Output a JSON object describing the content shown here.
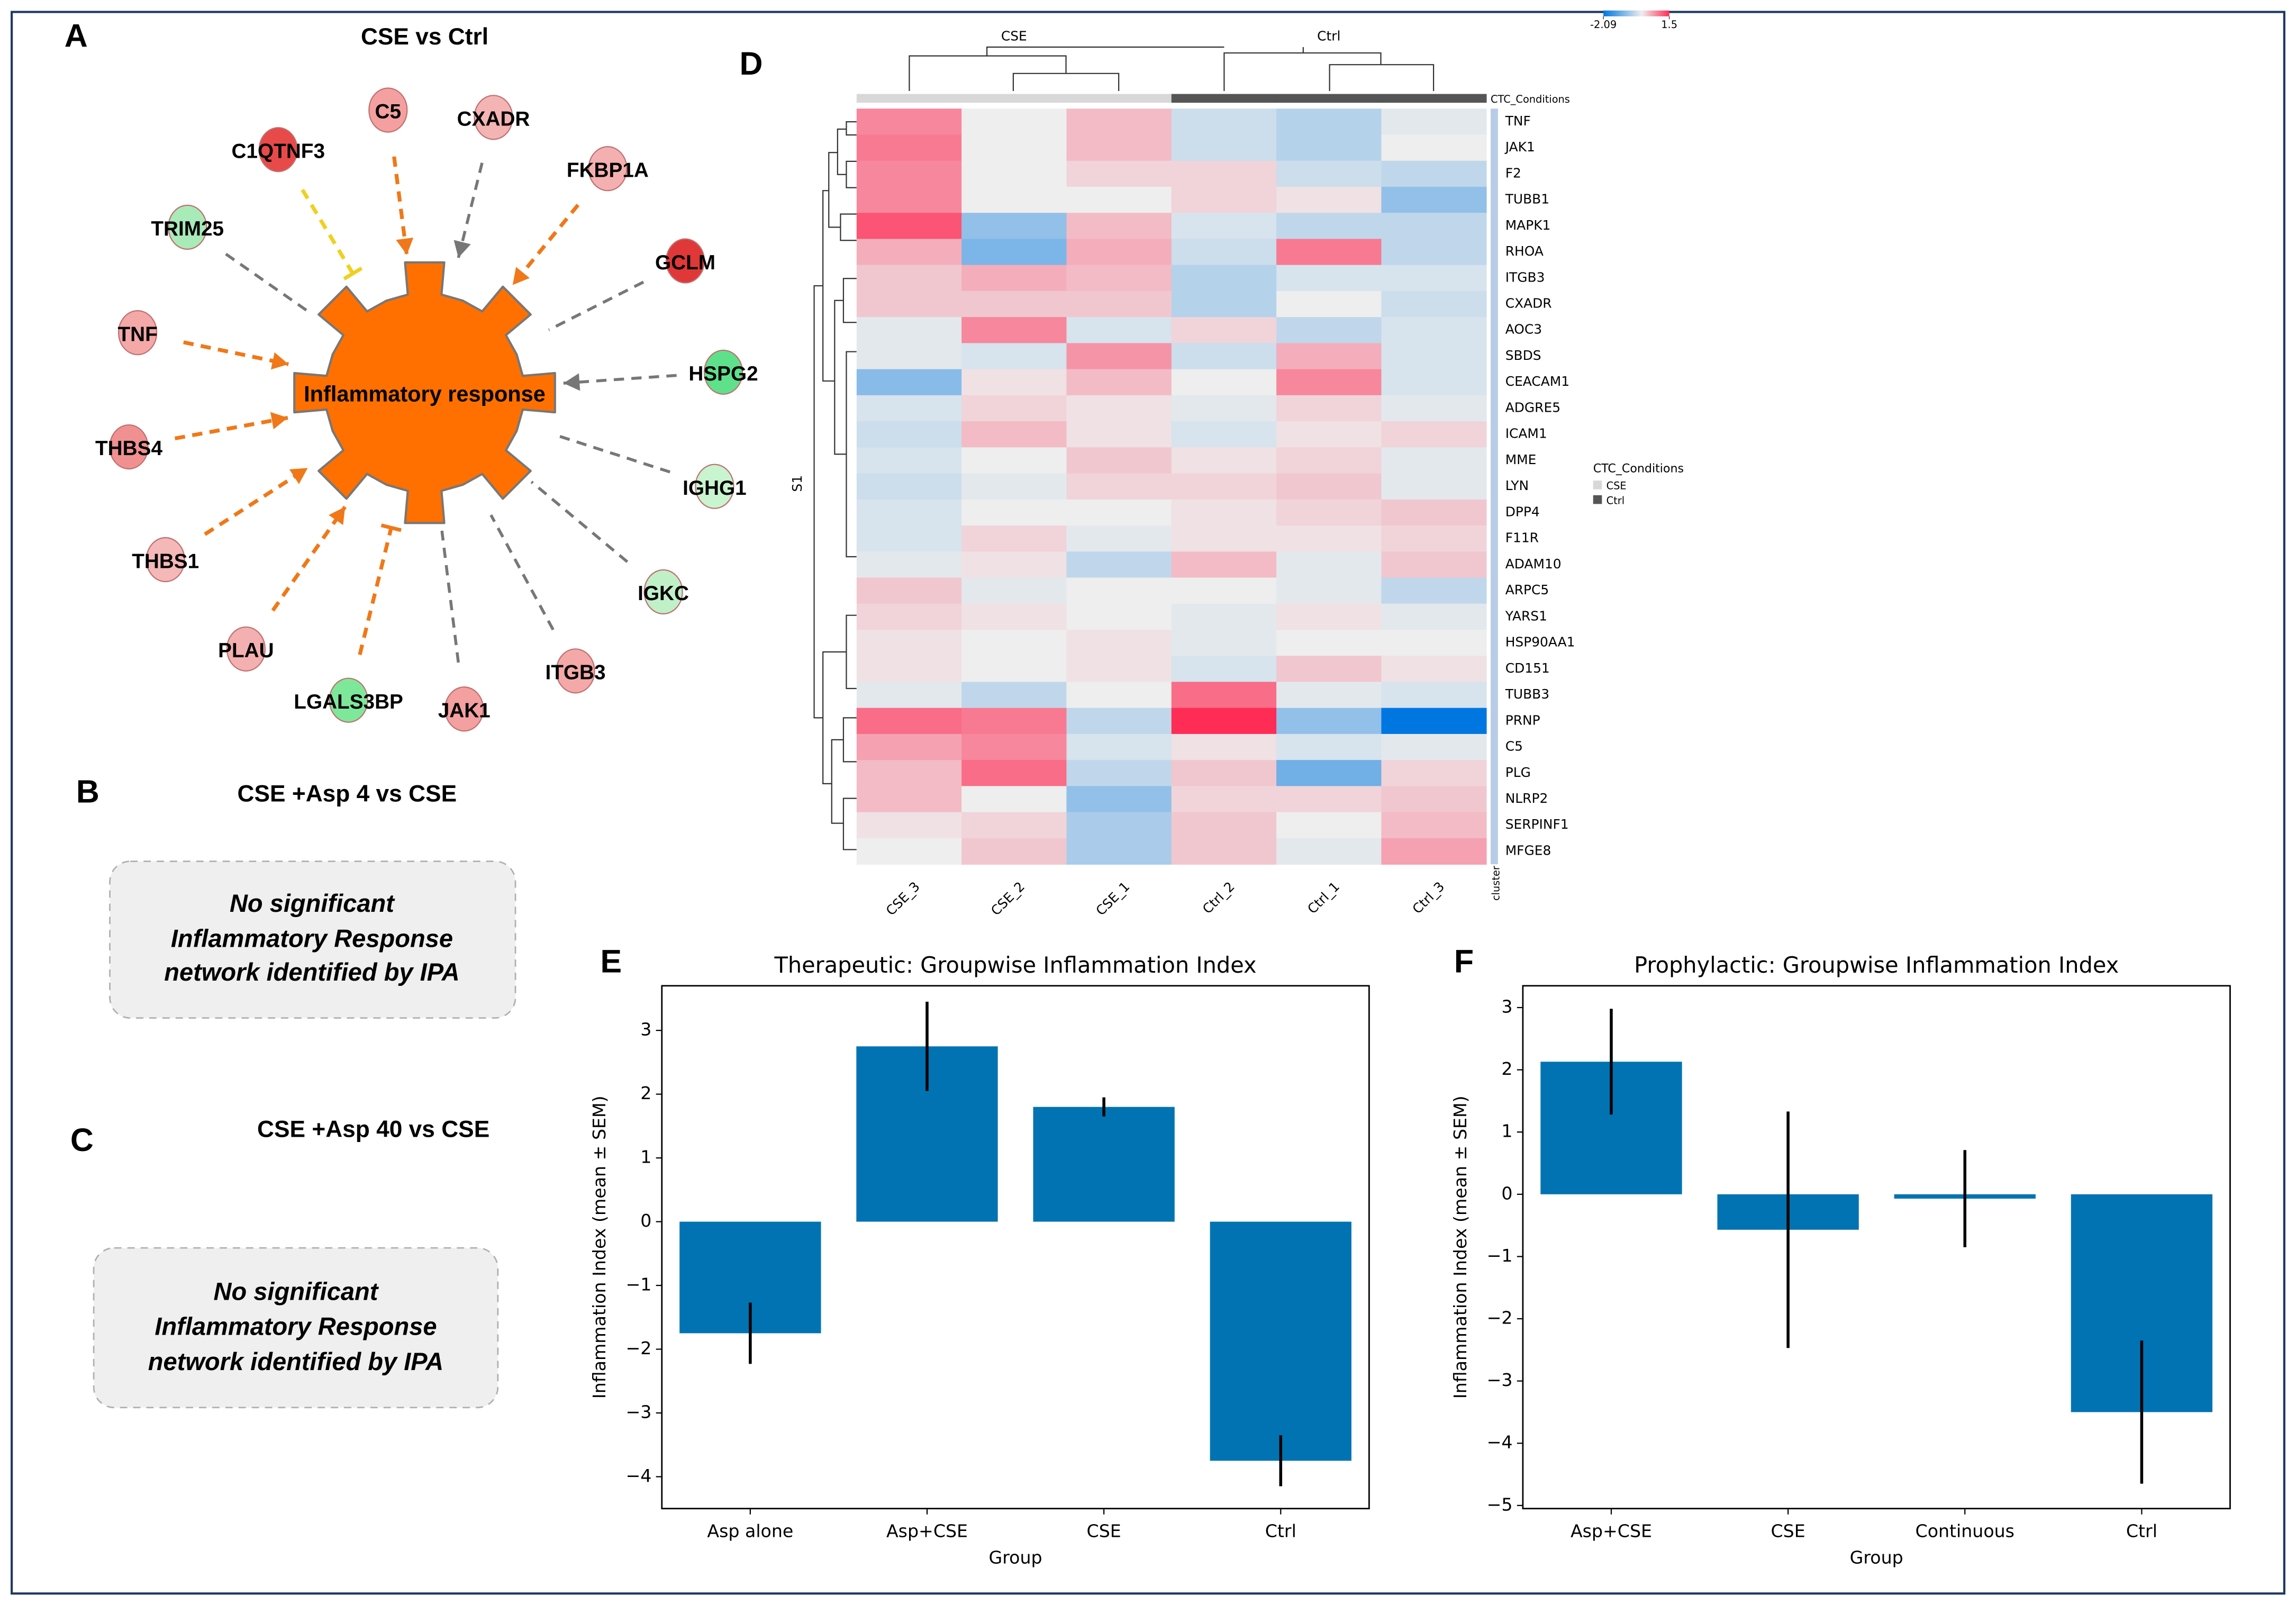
{
  "panel_labels": [
    "A",
    "B",
    "C",
    "D",
    "E",
    "F"
  ],
  "network": {
    "title": "CSE vs Ctrl",
    "center": "Inflammatory response",
    "center_color": "#ff7000",
    "nodes": [
      {
        "label": "C1QTNF3",
        "color": "#e84a4a",
        "edge_color": "#f0d020",
        "edge_end": "bar"
      },
      {
        "label": "C5",
        "color": "#f4a0a0",
        "edge_color": "#f07818",
        "edge_end": "arrow"
      },
      {
        "label": "CXADR",
        "color": "#f4b4b4",
        "edge_color": "#777777",
        "edge_end": "arrow"
      },
      {
        "label": "FKBP1A",
        "color": "#f4b0b0",
        "edge_color": "#f07818",
        "edge_end": "arrow"
      },
      {
        "label": "TRIM25",
        "color": "#a8eab8",
        "edge_color": "#777777",
        "edge_end": "none"
      },
      {
        "label": "GCLM",
        "color": "#e03838",
        "edge_color": "#777777",
        "edge_end": "none"
      },
      {
        "label": "TNF",
        "color": "#f4a8a8",
        "edge_color": "#f07818",
        "edge_end": "arrow"
      },
      {
        "label": "HSPG2",
        "color": "#5fe08a",
        "edge_color": "#777777",
        "edge_end": "arrow"
      },
      {
        "label": "THBS4",
        "color": "#f09090",
        "edge_color": "#f07818",
        "edge_end": "arrow"
      },
      {
        "label": "IGHG1",
        "color": "#c8f4d0",
        "edge_color": "#777777",
        "edge_end": "none"
      },
      {
        "label": "THBS1",
        "color": "#f4b8b8",
        "edge_color": "#f07818",
        "edge_end": "arrow"
      },
      {
        "label": "IGKC",
        "color": "#c0f0c8",
        "edge_color": "#777777",
        "edge_end": "none"
      },
      {
        "label": "PLAU",
        "color": "#f4b0b0",
        "edge_color": "#f07818",
        "edge_end": "arrow"
      },
      {
        "label": "ITGB3",
        "color": "#f4a8a8",
        "edge_color": "#777777",
        "edge_end": "none"
      },
      {
        "label": "LGALS3BP",
        "color": "#7ee89a",
        "edge_color": "#f07818",
        "edge_end": "bar"
      },
      {
        "label": "JAK1",
        "color": "#f4a0a0",
        "edge_color": "#777777",
        "edge_end": "none"
      }
    ]
  },
  "panel_b": {
    "title": "CSE +Asp 4 vs CSE",
    "note": [
      "No significant",
      "Inflammatory Response",
      "network identified by IPA"
    ]
  },
  "panel_c": {
    "title": "CSE +Asp 40 vs CSE",
    "note": [
      "No significant",
      "Inflammatory Response",
      "network identified by IPA"
    ]
  },
  "chart_data": [
    {
      "type": "heatmap",
      "groups": [
        "CSE",
        "Ctrl"
      ],
      "group_colors": [
        "#d8d8d8",
        "#555555"
      ],
      "legend_title": "CTC_Conditions",
      "row_axis_label": "S1",
      "cluster_label": "cluster",
      "columns": [
        "CSE_3",
        "CSE_2",
        "CSE_1",
        "Ctrl_2",
        "Ctrl_1",
        "Ctrl_3"
      ],
      "column_groups": [
        0,
        0,
        0,
        1,
        1,
        1
      ],
      "rows": [
        "TNF",
        "JAK1",
        "F2",
        "TUBB1",
        "MAPK1",
        "RHOA",
        "ITGB3",
        "CXADR",
        "AOC3",
        "SBDS",
        "CEACAM1",
        "ADGRE5",
        "ICAM1",
        "MME",
        "LYN",
        "DPP4",
        "F11R",
        "ADAM10",
        "ARPC5",
        "YARS1",
        "HSP90AA1",
        "CD151",
        "TUBB3",
        "PRNP",
        "C5",
        "PLG",
        "NLRP2",
        "SERPINF1",
        "MFGE8"
      ],
      "values": [
        [
          0.8,
          0.0,
          0.4,
          -0.3,
          -0.5,
          -0.1
        ],
        [
          0.9,
          0.0,
          0.4,
          -0.3,
          -0.5,
          0.0
        ],
        [
          0.8,
          0.0,
          0.2,
          0.2,
          -0.3,
          -0.4
        ],
        [
          0.8,
          0.0,
          0.0,
          0.2,
          0.1,
          -0.8
        ],
        [
          1.2,
          -0.8,
          0.4,
          -0.2,
          -0.4,
          -0.4
        ],
        [
          0.5,
          -1.0,
          0.5,
          -0.3,
          0.9,
          -0.4
        ],
        [
          0.3,
          0.5,
          0.4,
          -0.5,
          -0.2,
          -0.2
        ],
        [
          0.3,
          0.3,
          0.3,
          -0.5,
          0.0,
          -0.3
        ],
        [
          -0.1,
          0.8,
          -0.2,
          0.2,
          -0.4,
          -0.2
        ],
        [
          -0.1,
          -0.2,
          0.7,
          -0.3,
          0.5,
          -0.2
        ],
        [
          -0.9,
          0.1,
          0.4,
          0.0,
          0.8,
          -0.2
        ],
        [
          -0.2,
          0.2,
          0.1,
          -0.1,
          0.2,
          -0.1
        ],
        [
          -0.3,
          0.4,
          0.1,
          -0.2,
          0.1,
          0.2
        ],
        [
          -0.2,
          0.0,
          0.3,
          0.1,
          0.2,
          -0.1
        ],
        [
          -0.3,
          -0.1,
          0.2,
          0.2,
          0.3,
          -0.1
        ],
        [
          -0.2,
          0.0,
          0.0,
          0.1,
          0.2,
          0.3
        ],
        [
          -0.2,
          0.2,
          -0.1,
          0.1,
          0.1,
          0.2
        ],
        [
          -0.1,
          0.1,
          -0.4,
          0.4,
          -0.1,
          0.3
        ],
        [
          0.3,
          -0.1,
          0.0,
          0.0,
          -0.1,
          -0.4
        ],
        [
          0.2,
          0.1,
          0.0,
          -0.1,
          0.1,
          -0.1
        ],
        [
          0.1,
          0.0,
          0.1,
          -0.1,
          0.0,
          0.0
        ],
        [
          0.1,
          0.0,
          0.1,
          -0.2,
          0.3,
          0.1
        ],
        [
          -0.1,
          -0.4,
          0.0,
          1.0,
          -0.1,
          -0.2
        ],
        [
          1.0,
          0.9,
          -0.4,
          1.5,
          -0.8,
          -2.09
        ],
        [
          0.6,
          0.8,
          -0.2,
          0.1,
          -0.2,
          -0.1
        ],
        [
          0.4,
          1.0,
          -0.4,
          0.3,
          -1.1,
          0.2
        ],
        [
          0.4,
          0.0,
          -0.8,
          0.2,
          0.2,
          0.3
        ],
        [
          0.1,
          0.2,
          -0.6,
          0.3,
          0.0,
          0.4
        ],
        [
          0.0,
          0.3,
          -0.6,
          0.3,
          -0.1,
          0.6
        ]
      ],
      "zlim": [
        -2.09,
        1.5
      ],
      "zticks": [
        -2.09,
        1.5
      ],
      "colors": [
        "#0077e0",
        "#eeeeee",
        "#ff2d55"
      ],
      "cluster_color": "#b8cce8"
    },
    {
      "type": "bar",
      "title": "Therapeutic: Groupwise Inflammation Index",
      "xlabel": "Group",
      "ylabel": "Inflammation Index (mean ± SEM)",
      "categories": [
        "Asp alone",
        "Asp+CSE",
        "CSE",
        "Ctrl"
      ],
      "values": [
        -1.75,
        2.75,
        1.8,
        -3.75
      ],
      "errors": [
        0.48,
        0.7,
        0.15,
        0.4
      ],
      "color": "#0173b2",
      "error_color": "#000000",
      "ylim": [
        -4.5,
        3.7
      ],
      "yticks": [
        {
          "value": -4,
          "label": "−4"
        },
        {
          "value": -3,
          "label": "−3"
        },
        {
          "value": -2,
          "label": "−2"
        },
        {
          "value": -1,
          "label": "−1"
        },
        0,
        1,
        2,
        3
      ]
    },
    {
      "type": "bar",
      "title": "Prophylactic: Groupwise Inflammation Index",
      "xlabel": "Group",
      "ylabel": "Inflammation Index (mean ± SEM)",
      "categories": [
        "Asp+CSE",
        "CSE",
        "Continuous",
        "Ctrl"
      ],
      "values": [
        2.13,
        -0.57,
        -0.07,
        -3.5
      ],
      "errors": [
        0.85,
        1.9,
        0.78,
        1.15
      ],
      "color": "#0173b2",
      "error_color": "#000000",
      "ylim": [
        -5.05,
        3.35
      ],
      "yticks": [
        {
          "value": -5,
          "label": "−5"
        },
        {
          "value": -4,
          "label": "−4"
        },
        {
          "value": -3,
          "label": "−3"
        },
        {
          "value": -2,
          "label": "−2"
        },
        {
          "value": -1,
          "label": "−1"
        },
        0,
        1,
        2,
        3
      ]
    }
  ]
}
